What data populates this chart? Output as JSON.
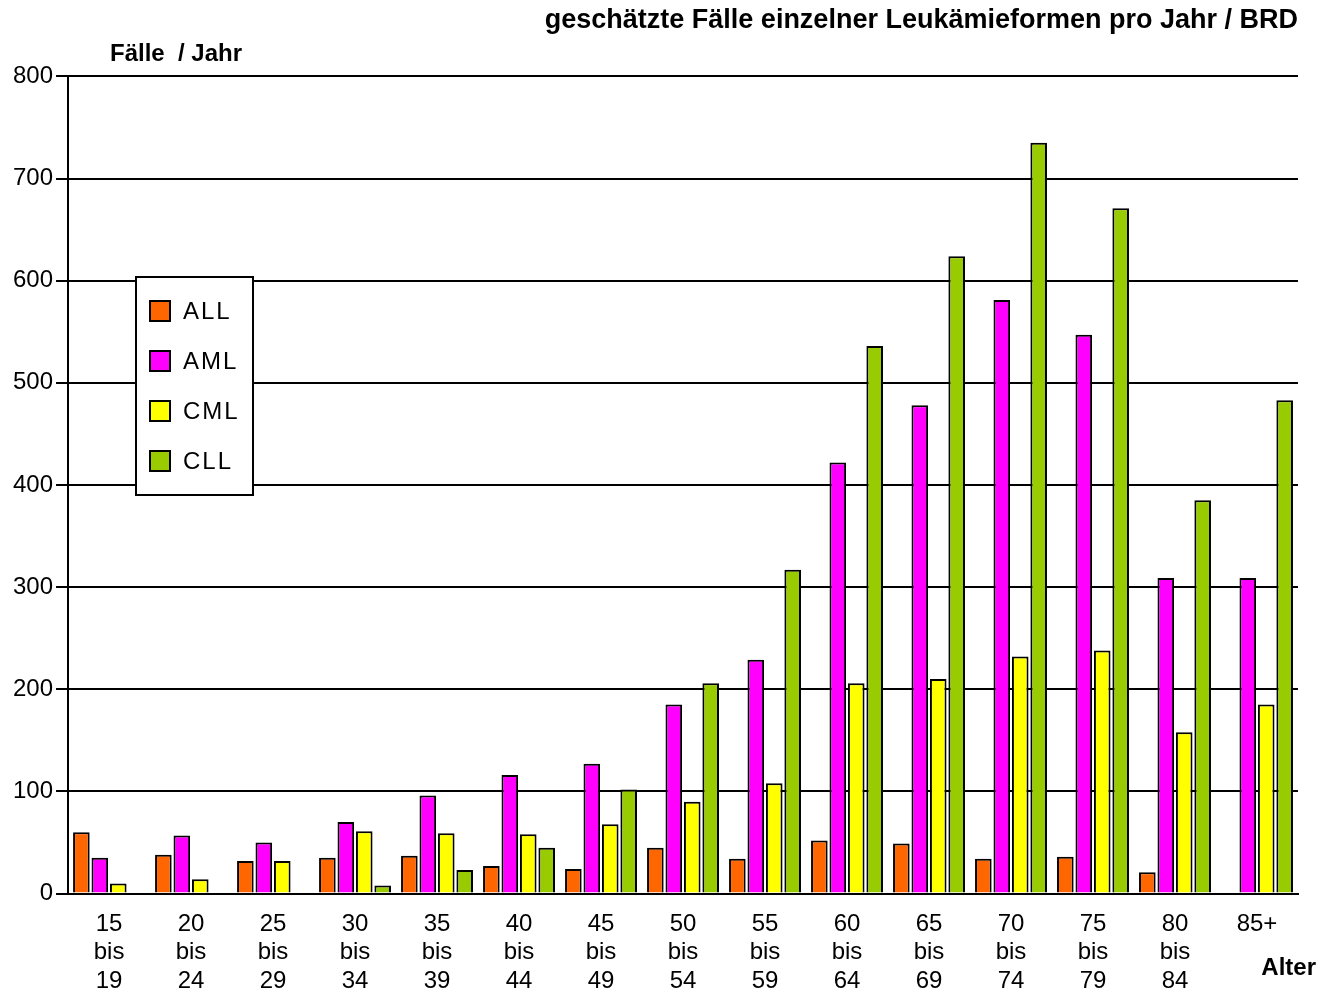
{
  "chart_data": {
    "type": "bar",
    "title": "geschätzte Fälle einzelner Leukämieformen pro Jahr / BRD",
    "ylabel": "Fälle  / Jahr",
    "xlabel": "Alter",
    "categories": [
      "15\nbis\n19",
      "20\nbis\n24",
      "25\nbis\n29",
      "30\nbis\n34",
      "35\nbis\n39",
      "40\nbis\n44",
      "45\nbis\n49",
      "50\nbis\n54",
      "55\nbis\n59",
      "60\nbis\n64",
      "65\nbis\n69",
      "70\nbis\n74",
      "75\nbis\n79",
      "80\nbis\n84",
      "85+"
    ],
    "series": [
      {
        "name": "ALL",
        "color": "#ff6600",
        "values": [
          60,
          38,
          32,
          35,
          37,
          27,
          24,
          45,
          34,
          52,
          49,
          34,
          36,
          21,
          0
        ]
      },
      {
        "name": "AML",
        "color": "#ff00ff",
        "values": [
          35,
          57,
          50,
          70,
          96,
          116,
          127,
          185,
          229,
          422,
          478,
          581,
          547,
          309,
          309
        ]
      },
      {
        "name": "CML",
        "color": "#ffff00",
        "values": [
          10,
          14,
          32,
          61,
          59,
          58,
          68,
          90,
          108,
          206,
          210,
          232,
          238,
          158,
          185
        ]
      },
      {
        "name": "CLL",
        "color": "#99cc00",
        "values": [
          0,
          0,
          0,
          8,
          23,
          45,
          102,
          206,
          317,
          536,
          624,
          735,
          671,
          385,
          483
        ]
      }
    ],
    "ylim": [
      0,
      800
    ],
    "yticks": [
      0,
      100,
      200,
      300,
      400,
      500,
      600,
      700,
      800
    ],
    "grid": "y",
    "legend": "left"
  }
}
